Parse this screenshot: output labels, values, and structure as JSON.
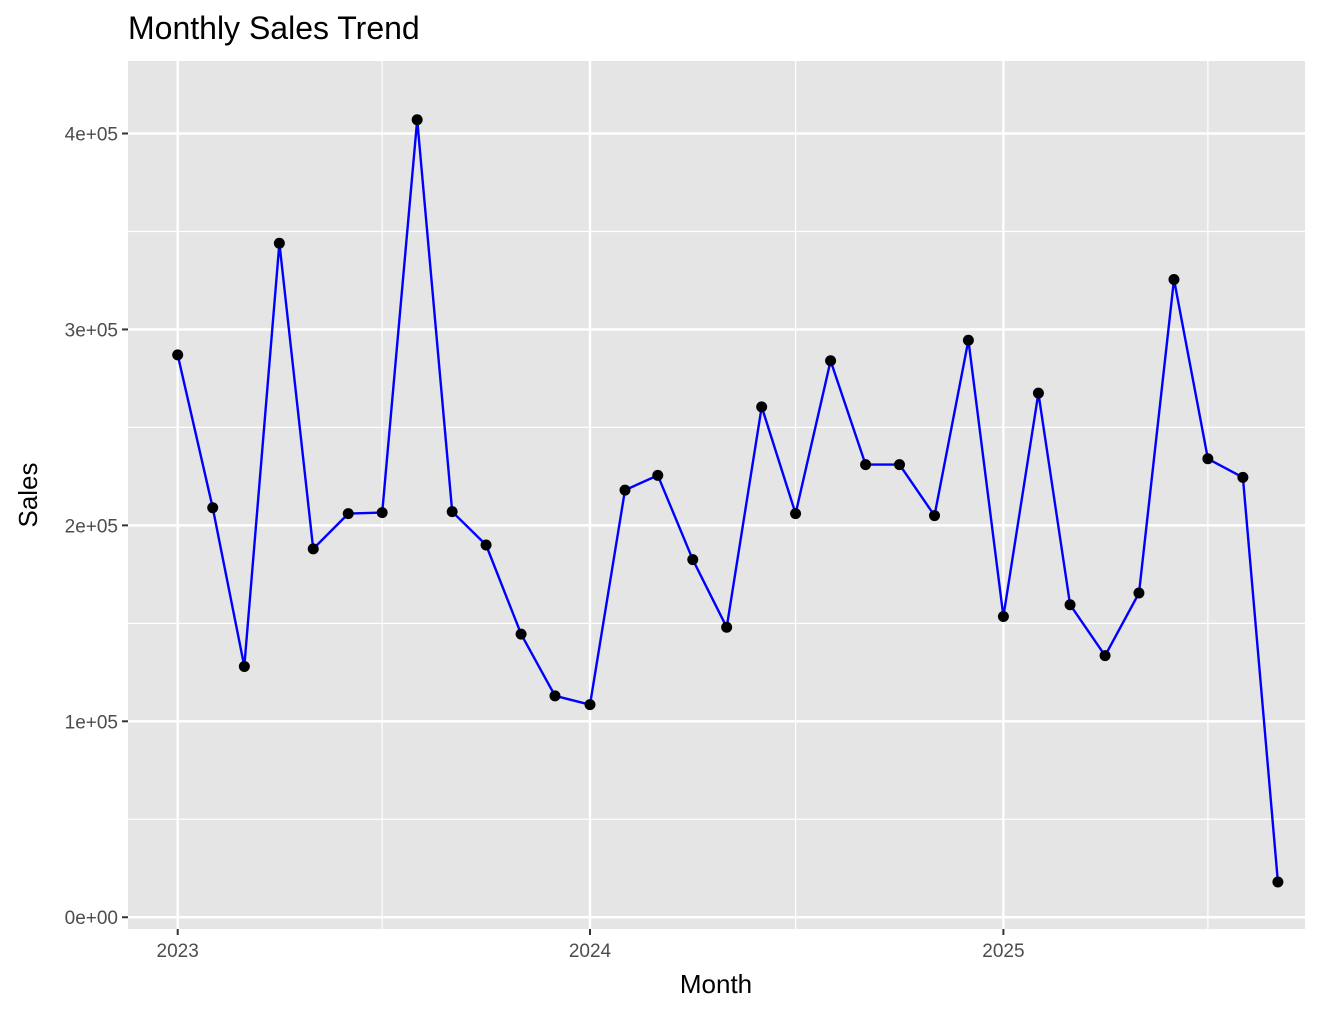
{
  "chart_data": {
    "type": "line",
    "title": "Monthly Sales Trend",
    "xlabel": "Month",
    "ylabel": "Sales",
    "x_axis": {
      "type": "date",
      "range": [
        "2022-11-18",
        "2025-09-25"
      ],
      "ticks": [
        {
          "value": "2023-01-01",
          "label": "2023"
        },
        {
          "value": "2024-01-01",
          "label": "2024"
        },
        {
          "value": "2025-01-01",
          "label": "2025"
        }
      ],
      "minor_ticks": [
        "2023-07-01",
        "2024-07-01",
        "2025-07-01"
      ]
    },
    "y_axis": {
      "range": [
        -6000,
        437000
      ],
      "ticks": [
        {
          "value": 0,
          "label": "0e+00"
        },
        {
          "value": 100000,
          "label": "1e+05"
        },
        {
          "value": 200000,
          "label": "2e+05"
        },
        {
          "value": 300000,
          "label": "3e+05"
        },
        {
          "value": 400000,
          "label": "4e+05"
        }
      ],
      "minor_ticks": [
        50000,
        150000,
        250000,
        350000
      ]
    },
    "grid": true,
    "colors": {
      "line": "#0000ff",
      "point": "#000000",
      "panel": "#e5e5e5",
      "grid": "#ffffff"
    },
    "series": [
      {
        "x": [
          "2023-01-01",
          "2023-02-01",
          "2023-03-01",
          "2023-04-01",
          "2023-05-01",
          "2023-06-01",
          "2023-07-01",
          "2023-08-01",
          "2023-09-01",
          "2023-10-01",
          "2023-11-01",
          "2023-12-01",
          "2024-01-01",
          "2024-02-01",
          "2024-03-01",
          "2024-04-01",
          "2024-05-01",
          "2024-06-01",
          "2024-07-01",
          "2024-08-01",
          "2024-09-01",
          "2024-10-01",
          "2024-11-01",
          "2024-12-01",
          "2025-01-01",
          "2025-02-01",
          "2025-03-01",
          "2025-04-01",
          "2025-05-01",
          "2025-06-01",
          "2025-07-01",
          "2025-08-01",
          "2025-09-01"
        ],
        "values": [
          287000,
          209000,
          128000,
          344000,
          188000,
          206000,
          206500,
          407000,
          207000,
          190000,
          144500,
          113000,
          108500,
          218000,
          225500,
          182500,
          148000,
          260500,
          206000,
          284000,
          231000,
          231000,
          205000,
          294500,
          153500,
          267500,
          159500,
          133500,
          165500,
          325500,
          234000,
          224500,
          18000
        ]
      }
    ]
  }
}
